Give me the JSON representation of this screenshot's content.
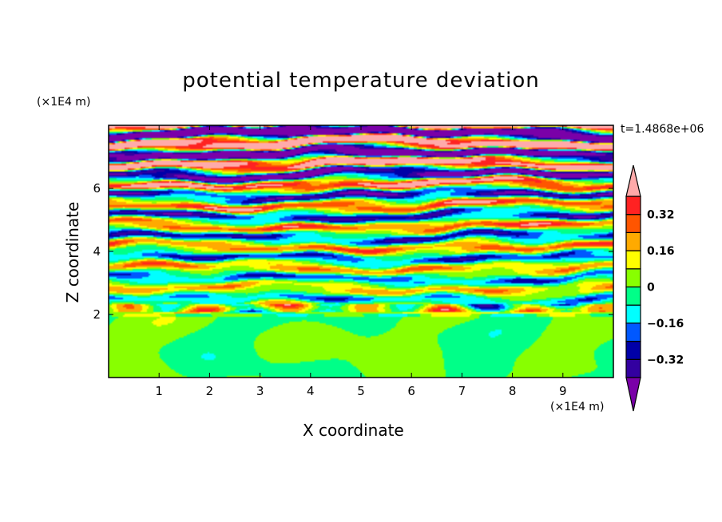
{
  "chart_data": {
    "type": "heatmap",
    "title": "potential temperature deviation",
    "xlabel": "X coordinate",
    "ylabel": "Z coordinate",
    "x_unit": "(×1E4 m)",
    "y_unit": "(×1E4 m)",
    "time_label": "t=1.4868e+06",
    "xlim": [
      0,
      10
    ],
    "ylim": [
      0,
      8
    ],
    "xticks": [
      "1",
      "2",
      "3",
      "4",
      "5",
      "6",
      "7",
      "8",
      "9"
    ],
    "yticks": [
      "2",
      "4",
      "6"
    ],
    "colorbar": {
      "levels": [
        -0.4,
        -0.32,
        -0.24,
        -0.16,
        -0.08,
        0,
        0.08,
        0.16,
        0.24,
        0.32,
        0.4
      ],
      "tick_labels": [
        "0.32",
        "0.16",
        "0",
        "−0.16",
        "−0.32"
      ],
      "tick_values": [
        0.32,
        0.16,
        0,
        -0.16,
        -0.32
      ],
      "colors_low_to_high": [
        "#7a00a8",
        "#3300a0",
        "#0000a8",
        "#0058ff",
        "#00ffff",
        "#00ff88",
        "#88ff00",
        "#ffff00",
        "#ffaa00",
        "#ff5500",
        "#ff2222",
        "#ffaaaa"
      ],
      "extend": "both"
    },
    "description_regions": [
      {
        "z_range": [
          0,
          2
        ],
        "values": "near zero (-0.08 to 0.08)"
      },
      {
        "z_range": [
          2,
          6
        ],
        "values": "horizontal layered bands, moderate amplitude"
      },
      {
        "z_range": [
          6,
          8
        ],
        "values": "strong layered bands exceeding ±0.40"
      }
    ]
  }
}
